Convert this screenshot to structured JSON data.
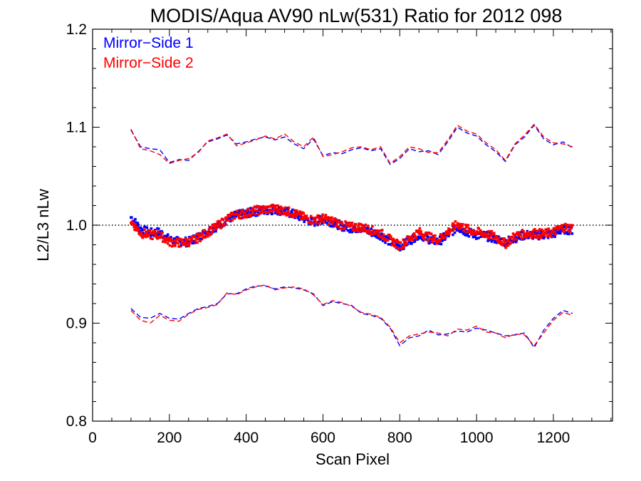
{
  "chart_data": {
    "type": "line",
    "title": "MODIS/Aqua AV90 nLw(531) Ratio for 2012 098",
    "xlabel": "Scan Pixel",
    "ylabel": "L2/L3 nLw",
    "xlim": [
      0,
      1354
    ],
    "ylim": [
      0.8,
      1.2
    ],
    "x_ticks": [
      0,
      200,
      400,
      600,
      800,
      1000,
      1200
    ],
    "x_tick_labels": [
      "0",
      "200",
      "400",
      "600",
      "800",
      "1000",
      "1200"
    ],
    "y_ticks": [
      0.8,
      0.9,
      1.0,
      1.1,
      1.2
    ],
    "y_tick_labels": [
      "0.8",
      "0.9",
      "1.0",
      "1.1",
      "1.2"
    ],
    "reference_line": {
      "y": 1.0,
      "style": "dotted",
      "color": "#000000"
    },
    "legend_position": "top-left",
    "grid": false,
    "x": [
      100,
      125,
      150,
      175,
      200,
      225,
      250,
      275,
      300,
      325,
      350,
      375,
      400,
      425,
      450,
      475,
      500,
      525,
      550,
      575,
      600,
      625,
      650,
      675,
      700,
      725,
      750,
      775,
      800,
      825,
      850,
      875,
      900,
      925,
      950,
      975,
      1000,
      1025,
      1050,
      1075,
      1100,
      1125,
      1150,
      1175,
      1200,
      1225,
      1250
    ],
    "series": [
      {
        "name": "Mirror−Side 1",
        "color": "#0000ff",
        "marker": "points",
        "mean": [
          1.008,
          0.996,
          0.992,
          0.993,
          0.985,
          0.983,
          0.983,
          0.988,
          0.994,
          0.999,
          1.006,
          1.01,
          1.012,
          1.014,
          1.015,
          1.016,
          1.014,
          1.011,
          1.007,
          1.003,
          1.006,
          1.003,
          0.999,
          0.997,
          0.997,
          0.993,
          0.99,
          0.983,
          0.978,
          0.984,
          0.991,
          0.986,
          0.983,
          0.99,
          0.998,
          0.993,
          0.99,
          0.989,
          0.986,
          0.983,
          0.987,
          0.99,
          0.99,
          0.99,
          0.991,
          0.996,
          0.995
        ],
        "upper": [
          1.097,
          1.08,
          1.078,
          1.077,
          1.064,
          1.067,
          1.066,
          1.075,
          1.085,
          1.088,
          1.092,
          1.083,
          1.085,
          1.088,
          1.09,
          1.087,
          1.09,
          1.083,
          1.078,
          1.088,
          1.071,
          1.074,
          1.073,
          1.077,
          1.079,
          1.076,
          1.078,
          1.062,
          1.068,
          1.078,
          1.075,
          1.076,
          1.072,
          1.085,
          1.1,
          1.094,
          1.091,
          1.082,
          1.075,
          1.065,
          1.082,
          1.09,
          1.102,
          1.088,
          1.082,
          1.085,
          1.079
        ],
        "lower": [
          0.915,
          0.906,
          0.905,
          0.91,
          0.905,
          0.904,
          0.91,
          0.915,
          0.917,
          0.92,
          0.93,
          0.93,
          0.935,
          0.938,
          0.938,
          0.935,
          0.937,
          0.936,
          0.934,
          0.93,
          0.918,
          0.922,
          0.92,
          0.918,
          0.91,
          0.908,
          0.905,
          0.895,
          0.877,
          0.885,
          0.887,
          0.893,
          0.888,
          0.889,
          0.892,
          0.891,
          0.895,
          0.893,
          0.89,
          0.887,
          0.888,
          0.89,
          0.875,
          0.893,
          0.905,
          0.913,
          0.91
        ]
      },
      {
        "name": "Mirror−Side 2",
        "color": "#ff0000",
        "marker": "points",
        "mean": [
          1.004,
          0.992,
          0.99,
          0.99,
          0.983,
          0.982,
          0.983,
          0.987,
          0.993,
          0.999,
          1.006,
          1.011,
          1.012,
          1.015,
          1.016,
          1.017,
          1.015,
          1.012,
          1.008,
          1.005,
          1.007,
          1.004,
          1.0,
          0.998,
          0.998,
          0.995,
          0.992,
          0.985,
          0.979,
          0.986,
          0.993,
          0.988,
          0.985,
          0.993,
          1.001,
          0.996,
          0.993,
          0.991,
          0.988,
          0.981,
          0.989,
          0.991,
          0.992,
          0.991,
          0.993,
          0.998,
          0.997
        ],
        "upper": [
          1.098,
          1.078,
          1.076,
          1.072,
          1.063,
          1.066,
          1.068,
          1.074,
          1.086,
          1.089,
          1.093,
          1.081,
          1.084,
          1.087,
          1.091,
          1.088,
          1.093,
          1.085,
          1.08,
          1.09,
          1.07,
          1.072,
          1.075,
          1.079,
          1.08,
          1.077,
          1.08,
          1.063,
          1.07,
          1.08,
          1.078,
          1.074,
          1.074,
          1.087,
          1.102,
          1.096,
          1.093,
          1.084,
          1.077,
          1.066,
          1.083,
          1.092,
          1.103,
          1.09,
          1.084,
          1.083,
          1.08
        ],
        "lower": [
          0.913,
          0.903,
          0.9,
          0.908,
          0.903,
          0.902,
          0.909,
          0.914,
          0.916,
          0.919,
          0.931,
          0.929,
          0.934,
          0.937,
          0.939,
          0.934,
          0.936,
          0.937,
          0.935,
          0.929,
          0.919,
          0.923,
          0.921,
          0.917,
          0.911,
          0.909,
          0.906,
          0.896,
          0.88,
          0.887,
          0.889,
          0.891,
          0.89,
          0.887,
          0.894,
          0.893,
          0.897,
          0.891,
          0.89,
          0.885,
          0.889,
          0.888,
          0.877,
          0.89,
          0.903,
          0.911,
          0.908
        ]
      }
    ]
  }
}
